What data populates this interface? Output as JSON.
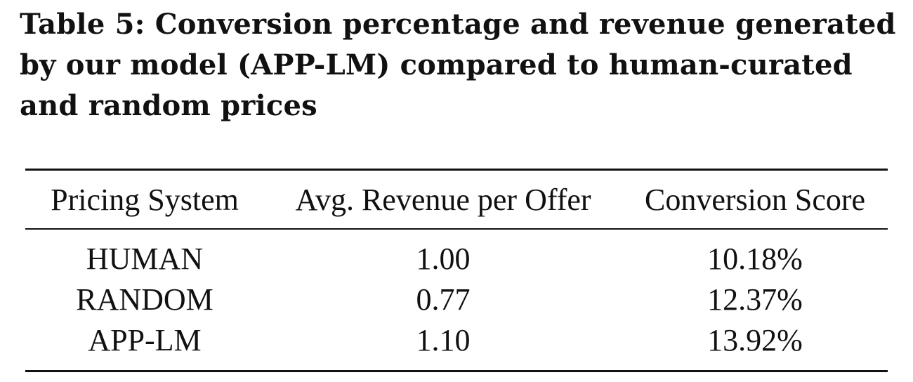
{
  "caption": "Table 5: Conversion percentage and revenue generated by our model (APP-LM) compared to human-curated and random prices",
  "table": {
    "headers": [
      "Pricing System",
      "Avg. Revenue per Offer",
      "Conversion Score"
    ],
    "rows": [
      [
        "HUMAN",
        "1.00",
        "10.18%"
      ],
      [
        "RANDOM",
        "0.77",
        "12.37%"
      ],
      [
        "APP-LM",
        "1.10",
        "13.92%"
      ]
    ]
  }
}
